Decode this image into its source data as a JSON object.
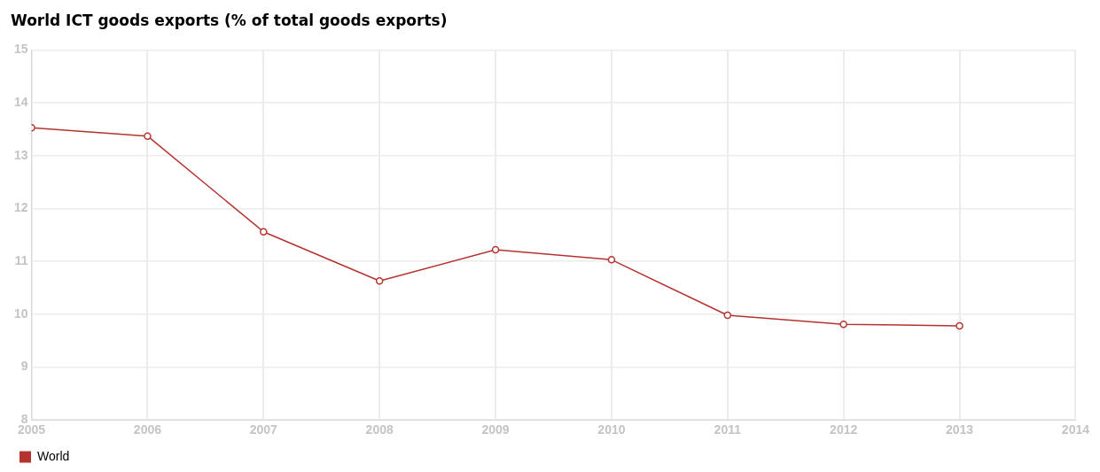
{
  "chart_data": {
    "type": "line",
    "title": "World ICT goods exports (% of total goods exports)",
    "x": [
      2005,
      2006,
      2007,
      2008,
      2009,
      2010,
      2011,
      2012,
      2013
    ],
    "series": [
      {
        "name": "World",
        "color": "#b5332e",
        "values": [
          13.53,
          13.37,
          11.56,
          10.63,
          11.22,
          11.03,
          9.98,
          9.81,
          9.78
        ]
      }
    ],
    "xlim": [
      2005,
      2014
    ],
    "xticks": [
      2005,
      2006,
      2007,
      2008,
      2009,
      2010,
      2011,
      2012,
      2013,
      2014
    ],
    "ylim": [
      8,
      15
    ],
    "yticks": [
      8,
      9,
      10,
      11,
      12,
      13,
      14,
      15
    ],
    "grid": true,
    "legend": "bottom left",
    "marker": "circle",
    "line_style": "solid"
  }
}
